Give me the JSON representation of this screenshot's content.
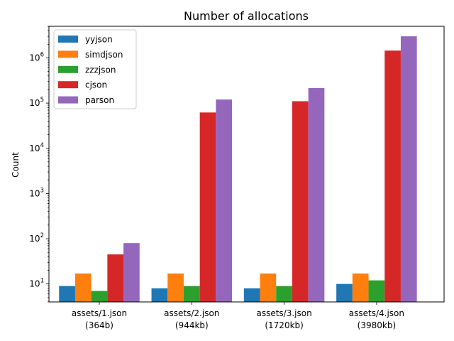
{
  "chart_data": {
    "type": "bar",
    "title": "Number of allocations",
    "xlabel": "",
    "ylabel": "Count",
    "yscale": "log",
    "ylim": [
      4,
      5000000
    ],
    "grid": false,
    "legend_position": "top-left",
    "categories": [
      [
        "assets/1.json",
        "(364b)"
      ],
      [
        "assets/2.json",
        "(944kb)"
      ],
      [
        "assets/3.json",
        "(1720kb)"
      ],
      [
        "assets/4.json",
        "(3980kb)"
      ]
    ],
    "y_ticks": [
      {
        "value": 10,
        "base": "10",
        "exp": "1"
      },
      {
        "value": 100,
        "base": "10",
        "exp": "2"
      },
      {
        "value": 1000,
        "base": "10",
        "exp": "3"
      },
      {
        "value": 10000,
        "base": "10",
        "exp": "4"
      },
      {
        "value": 100000,
        "base": "10",
        "exp": "5"
      },
      {
        "value": 1000000,
        "base": "10",
        "exp": "6"
      }
    ],
    "series": [
      {
        "name": "yyjson",
        "color": "#1f77b4",
        "values": [
          9,
          8,
          8,
          10
        ]
      },
      {
        "name": "simdjson",
        "color": "#ff7f0e",
        "values": [
          17,
          17,
          17,
          17
        ]
      },
      {
        "name": "zzzjson",
        "color": "#2ca02c",
        "values": [
          7,
          9,
          9,
          12
        ]
      },
      {
        "name": "cjson",
        "color": "#d62728",
        "values": [
          45,
          62000,
          110000,
          1450000
        ]
      },
      {
        "name": "parson",
        "color": "#9467bd",
        "values": [
          80,
          120000,
          215000,
          3000000
        ]
      }
    ]
  }
}
